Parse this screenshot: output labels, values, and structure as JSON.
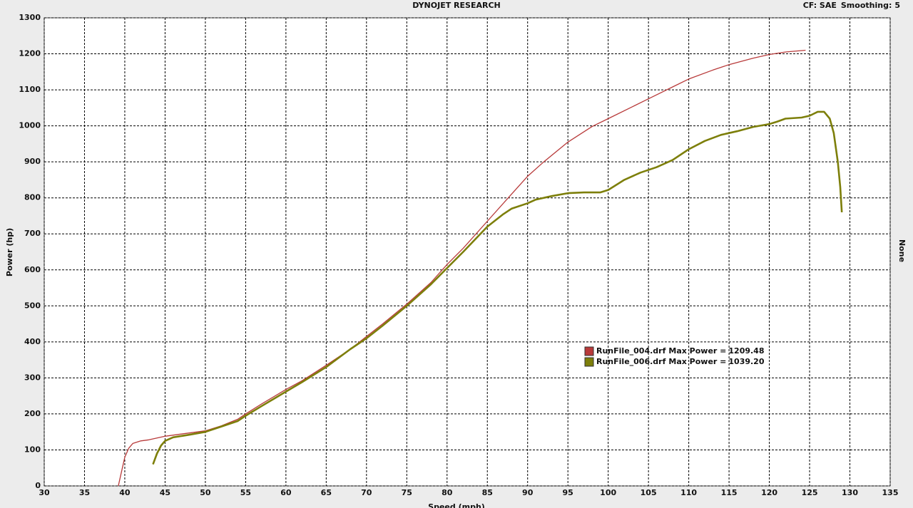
{
  "chart_data": {
    "type": "line",
    "title": "DYNOJET RESEARCH",
    "cf_label": "CF: SAE",
    "smoothing_label": "Smoothing:",
    "smoothing": 5,
    "x_label": "Speed (mph)",
    "y_label": "Power (hp)",
    "right_label": "None",
    "xlim": [
      30,
      135
    ],
    "ylim": [
      0,
      1300
    ],
    "xticks": [
      30,
      35,
      40,
      45,
      50,
      55,
      60,
      65,
      70,
      75,
      80,
      85,
      90,
      95,
      100,
      105,
      110,
      115,
      120,
      125,
      130,
      135
    ],
    "yticks": [
      0,
      100,
      200,
      300,
      400,
      500,
      600,
      700,
      800,
      900,
      1000,
      1100,
      1200,
      1300
    ],
    "grid": true,
    "legend_label": "Max Power =",
    "series": [
      {
        "name": "RunFile_004.drf",
        "color": "#b83a3a",
        "max_power": {
          "value": 1209.48,
          "label": "1209.48"
        },
        "x": [
          39.2,
          39.6,
          40,
          40.5,
          41,
          42,
          43,
          44,
          45,
          47,
          50,
          52,
          54,
          55,
          57,
          60,
          62,
          65,
          68,
          70,
          72,
          75,
          78,
          80,
          82,
          85,
          88,
          90,
          92,
          95,
          98,
          100,
          103,
          105,
          108,
          110,
          113,
          115,
          118,
          120,
          122,
          124.5
        ],
        "values": [
          0,
          40,
          80,
          105,
          118,
          125,
          128,
          133,
          138,
          144,
          153,
          167,
          185,
          200,
          228,
          268,
          292,
          335,
          380,
          415,
          450,
          505,
          565,
          615,
          660,
          735,
          810,
          860,
          900,
          955,
          998,
          1020,
          1053,
          1075,
          1108,
          1130,
          1155,
          1170,
          1188,
          1198,
          1205,
          1210
        ]
      },
      {
        "name": "RunFile_006.drf",
        "color": "#7d7f0a",
        "max_power": {
          "value": 1039.2,
          "label": "1039.20"
        },
        "x": [
          43.5,
          44,
          44.5,
          45,
          46,
          48,
          50,
          52,
          54,
          55,
          57,
          60,
          62,
          65,
          68,
          70,
          72,
          75,
          78,
          80,
          82,
          85,
          87,
          88,
          90,
          91,
          93,
          95,
          97,
          99,
          100,
          102,
          104,
          106,
          108,
          110,
          112,
          114,
          116,
          118,
          120,
          121,
          122,
          124,
          125,
          126,
          126.8,
          127.5,
          128,
          128.5,
          128.8,
          129
        ],
        "values": [
          60,
          90,
          112,
          125,
          135,
          142,
          150,
          165,
          180,
          195,
          222,
          262,
          288,
          330,
          380,
          410,
          445,
          500,
          560,
          605,
          650,
          720,
          755,
          770,
          785,
          795,
          805,
          813,
          815,
          815,
          822,
          850,
          870,
          885,
          905,
          935,
          958,
          975,
          985,
          997,
          1005,
          1012,
          1020,
          1023,
          1028,
          1039,
          1039,
          1020,
          980,
          900,
          830,
          760
        ]
      }
    ]
  }
}
